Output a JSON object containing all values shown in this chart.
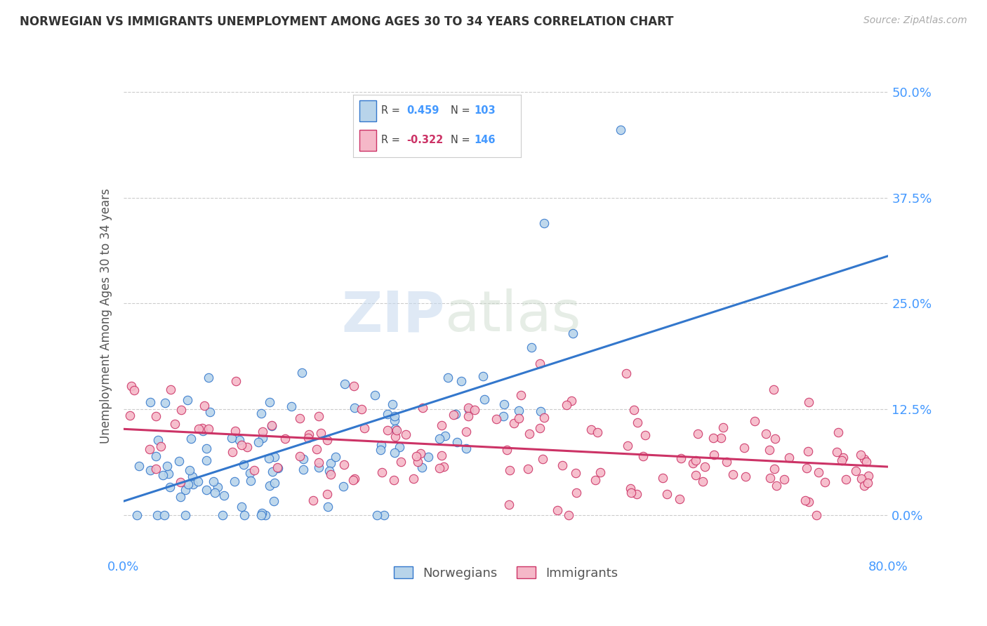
{
  "title": "NORWEGIAN VS IMMIGRANTS UNEMPLOYMENT AMONG AGES 30 TO 34 YEARS CORRELATION CHART",
  "source": "Source: ZipAtlas.com",
  "ylabel": "Unemployment Among Ages 30 to 34 years",
  "ytick_labels": [
    "0.0%",
    "12.5%",
    "25.0%",
    "37.5%",
    "50.0%"
  ],
  "ytick_values": [
    0.0,
    0.125,
    0.25,
    0.375,
    0.5
  ],
  "xlim": [
    0.0,
    0.8
  ],
  "ylim": [
    -0.05,
    0.52
  ],
  "norwegian_R": 0.459,
  "norwegian_N": 103,
  "immigrant_R": -0.322,
  "immigrant_N": 146,
  "norwegian_color": "#b8d4ea",
  "norwegian_line_color": "#3377cc",
  "immigrant_color": "#f5b8c8",
  "immigrant_line_color": "#cc3366",
  "legend_norwegian": "Norwegians",
  "legend_immigrant": "Immigrants",
  "watermark_zip": "ZIP",
  "watermark_atlas": "atlas",
  "background_color": "#ffffff",
  "grid_color": "#cccccc",
  "title_color": "#333333",
  "axis_label_color": "#555555",
  "right_tick_color": "#4499ff",
  "seed": 99
}
